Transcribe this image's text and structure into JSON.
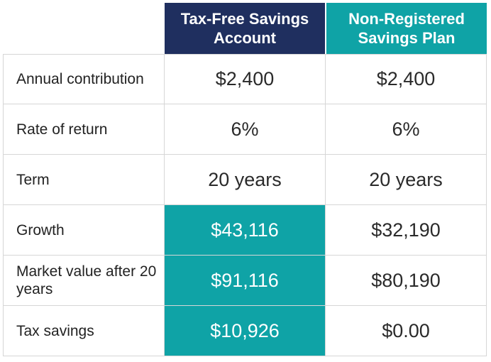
{
  "columns": {
    "tfsa_header": "Tax-Free Savings Account",
    "nrsp_header": "Non-Registered Savings Plan"
  },
  "rows": [
    {
      "label": "Annual contribution",
      "tfsa": "$2,400",
      "nrsp": "$2,400",
      "tfsa_highlighted": false
    },
    {
      "label": "Rate of return",
      "tfsa": "6%",
      "nrsp": "6%",
      "tfsa_highlighted": false
    },
    {
      "label": "Term",
      "tfsa": "20 years",
      "nrsp": "20 years",
      "tfsa_highlighted": false
    },
    {
      "label": "Growth",
      "tfsa": "$43,116",
      "nrsp": "$32,190",
      "tfsa_highlighted": true
    },
    {
      "label": "Market value after 20 years",
      "tfsa": "$91,116",
      "nrsp": "$80,190",
      "tfsa_highlighted": true
    },
    {
      "label": "Tax savings",
      "tfsa": "$10,926",
      "nrsp": "$0.00",
      "tfsa_highlighted": true
    }
  ],
  "colors": {
    "tfsa_header_bg": "#1f2f5f",
    "nrsp_header_bg": "#0fa3a6",
    "highlight_bg": "#0fa3a6",
    "grid_line": "#d6d6d6"
  }
}
